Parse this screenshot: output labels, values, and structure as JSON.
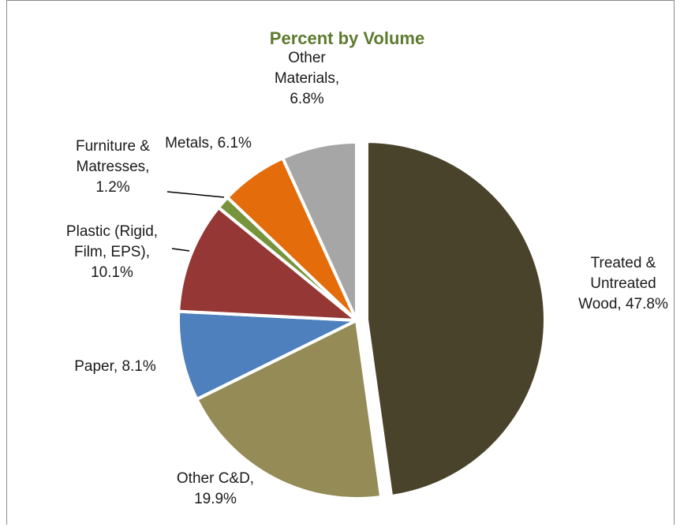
{
  "chart_data": {
    "type": "pie",
    "title": "Percent by Volume",
    "title_color": "#5e7a2e",
    "start_angle_deg": 0,
    "direction": "clockwise",
    "slices": [
      {
        "name": "Treated & Untreated Wood",
        "value": 47.8,
        "color": "#4a432b",
        "exploded": true,
        "label_lines": [
          "Treated &",
          "Untreated",
          "Wood, 47.8%"
        ]
      },
      {
        "name": "Other C&D",
        "value": 19.9,
        "color": "#948b56",
        "label_lines": [
          "Other C&D,",
          "19.9%"
        ]
      },
      {
        "name": "Paper",
        "value": 8.1,
        "color": "#4e80bd",
        "label_lines": [
          "Paper, 8.1%"
        ]
      },
      {
        "name": "Plastic (Rigid, Film, EPS)",
        "value": 10.1,
        "color": "#953735",
        "label_lines": [
          "Plastic (Rigid,",
          "Film, EPS),",
          "10.1%"
        ]
      },
      {
        "name": "Furniture & Matresses",
        "value": 1.2,
        "color": "#77933c",
        "label_lines": [
          "Furniture &",
          "Matresses,",
          "1.2%"
        ]
      },
      {
        "name": "Metals",
        "value": 6.1,
        "color": "#e46c0a",
        "label_lines": [
          "Metals, 6.1%"
        ]
      },
      {
        "name": "Other Materials",
        "value": 6.8,
        "color": "#a6a6a6",
        "label_lines": [
          "Other",
          "Materials,",
          "6.8%"
        ]
      }
    ]
  }
}
